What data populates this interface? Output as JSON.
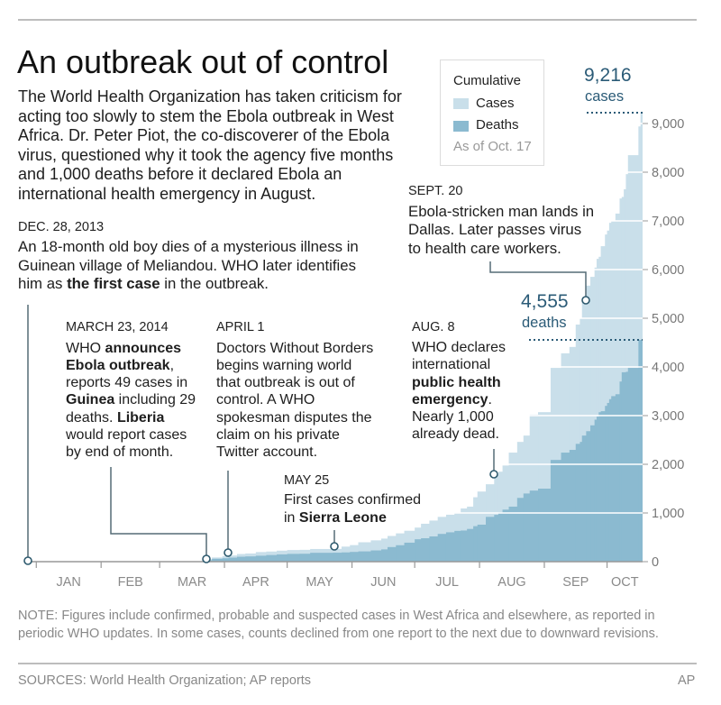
{
  "header": {
    "title": "An outbreak out of control",
    "intro_lines": [
      [
        "The World Health Organization has taken criticism for"
      ],
      [
        "acting too slowly to stem the Ebola outbreak in West"
      ],
      [
        "Africa. Dr. Peter Piot, the co-discoverer of the Ebola"
      ],
      [
        "virus, questioned why it took the agency five months"
      ],
      [
        "and 1,000 deaths before it declared Ebola an"
      ],
      [
        "international health emergency in August."
      ]
    ]
  },
  "legend": {
    "title": "Cumulative",
    "items": [
      {
        "label": "Cases",
        "color": "#c9dfea"
      },
      {
        "label": "Deaths",
        "color": "#8bbad0"
      }
    ],
    "as_of": "As of Oct. 17"
  },
  "callouts": {
    "cases": {
      "value": "9,216",
      "label": "cases"
    },
    "deaths": {
      "value": "4,555",
      "label": "deaths"
    }
  },
  "events": {
    "dec28": {
      "date": "DEC. 28, 2013",
      "lines": [
        [
          "An 18-month old boy dies of a mysterious illness in"
        ],
        [
          "Guinean village of Meliandou. WHO later identifies"
        ],
        [
          "him as ",
          {
            "b": "the first case"
          },
          " in the outbreak."
        ]
      ]
    },
    "mar23": {
      "date": "MARCH 23, 2014",
      "lines": [
        [
          "WHO ",
          {
            "b": "announces"
          }
        ],
        [
          {
            "b": "Ebola outbreak"
          },
          ","
        ],
        [
          "reports 49 cases in"
        ],
        [
          {
            "b": "Guinea"
          },
          " including 29"
        ],
        [
          "deaths. ",
          {
            "b": "Liberia"
          }
        ],
        [
          "would report cases"
        ],
        [
          "by end of month."
        ]
      ]
    },
    "apr1": {
      "date": "APRIL 1",
      "lines": [
        [
          "Doctors Without Borders"
        ],
        [
          "begins warning world"
        ],
        [
          "that outbreak is out of"
        ],
        [
          "control. A WHO"
        ],
        [
          "spokesman disputes the"
        ],
        [
          "claim on his private"
        ],
        [
          "Twitter account."
        ]
      ]
    },
    "may25": {
      "date": "MAY 25",
      "lines": [
        [
          "First cases confirmed"
        ],
        [
          "in ",
          {
            "b": "Sierra Leone"
          }
        ]
      ]
    },
    "aug8": {
      "date": "AUG. 8",
      "lines": [
        [
          "WHO declares"
        ],
        [
          "international"
        ],
        [
          {
            "b": "public health"
          }
        ],
        [
          {
            "b": "emergency"
          },
          "."
        ],
        [
          "Nearly 1,000"
        ],
        [
          "already dead."
        ]
      ]
    },
    "sep20": {
      "date": "SEPT. 20",
      "lines": [
        [
          "Ebola-stricken man lands in"
        ],
        [
          "Dallas. Later passes virus"
        ],
        [
          "to health care workers."
        ]
      ]
    }
  },
  "note": {
    "lines": [
      [
        "NOTE: Figures include confirmed, probable and suspected cases in West Africa and elsewhere, as reported in"
      ],
      [
        "periodic WHO updates. In some cases, counts declined from one report to the next due to downward revisions."
      ]
    ]
  },
  "footer": {
    "sources": "SOURCES: World Health Organization; AP reports",
    "credit": "AP"
  },
  "colors": {
    "cases": "#c9dfea",
    "deaths": "#8bbad0",
    "callout_text": "#2b5b77",
    "leader_line": "#556c77",
    "axis_text": "#777777"
  },
  "chart_data": {
    "type": "area",
    "style": "step",
    "stacking": "overlaid",
    "title": "An outbreak out of control",
    "xlabel": "",
    "ylabel": "",
    "xlim": [
      "2013-12-28",
      "2014-10-18"
    ],
    "ylim": [
      0,
      9000
    ],
    "grid": true,
    "legend": "top-center",
    "x_ticks": [
      "2014-01-01",
      "2014-02-01",
      "2014-03-01",
      "2014-04-01",
      "2014-05-01",
      "2014-06-01",
      "2014-07-01",
      "2014-08-01",
      "2014-09-01",
      "2014-10-01"
    ],
    "x_tick_labels": [
      "JAN",
      "FEB",
      "MAR",
      "APR",
      "MAY",
      "JUN",
      "JUL",
      "AUG",
      "SEP",
      "OCT"
    ],
    "y_ticks": [
      0,
      1000,
      2000,
      3000,
      4000,
      5000,
      6000,
      7000,
      8000,
      9000
    ],
    "y_tick_labels": [
      "0",
      "1,000",
      "2,000",
      "3,000",
      "4,000",
      "5,000",
      "6,000",
      "7,000",
      "8,000",
      "9,000"
    ],
    "x": [
      "2014-03-23",
      "2014-03-26",
      "2014-03-31",
      "2014-04-03",
      "2014-04-07",
      "2014-04-11",
      "2014-04-16",
      "2014-04-21",
      "2014-04-26",
      "2014-05-01",
      "2014-05-07",
      "2014-05-12",
      "2014-05-23",
      "2014-05-27",
      "2014-05-31",
      "2014-06-04",
      "2014-06-10",
      "2014-06-15",
      "2014-06-18",
      "2014-06-22",
      "2014-06-26",
      "2014-07-01",
      "2014-07-04",
      "2014-07-08",
      "2014-07-12",
      "2014-07-16",
      "2014-07-20",
      "2014-07-23",
      "2014-07-26",
      "2014-07-29",
      "2014-07-31",
      "2014-08-04",
      "2014-08-08",
      "2014-08-10",
      "2014-08-12",
      "2014-08-15",
      "2014-08-19",
      "2014-08-22",
      "2014-08-25",
      "2014-08-29",
      "2014-09-04",
      "2014-09-09",
      "2014-09-13",
      "2014-09-16",
      "2014-09-18",
      "2014-09-19",
      "2014-09-21",
      "2014-09-23",
      "2014-09-25",
      "2014-09-26",
      "2014-09-27",
      "2014-09-28",
      "2014-09-30",
      "2014-10-01",
      "2014-10-02",
      "2014-10-03",
      "2014-10-05",
      "2014-10-07",
      "2014-10-08",
      "2014-10-09",
      "2014-10-10",
      "2014-10-11",
      "2014-10-16",
      "2014-10-17"
    ],
    "series": [
      {
        "name": "Cases",
        "color": "#c9dfea",
        "values": [
          49,
          86,
          112,
          127,
          157,
          168,
          197,
          208,
          226,
          239,
          243,
          260,
          262,
          309,
          340,
          398,
          438,
          474,
          528,
          581,
          635,
          700,
          779,
          844,
          920,
          964,
          1010,
          1093,
          1130,
          1323,
          1440,
          1590,
          1779,
          1848,
          1975,
          2240,
          2460,
          2590,
          3020,
          3071,
          3980,
          4280,
          4410,
          4870,
          5000,
          5430,
          5670,
          5850,
          6040,
          6220,
          6263,
          6480,
          6720,
          6800,
          6960,
          7000,
          7150,
          7460,
          7492,
          7650,
          7960,
          8350,
          8940,
          9216
        ]
      },
      {
        "name": "Deaths",
        "color": "#8bbad0",
        "values": [
          29,
          59,
          70,
          83,
          101,
          108,
          122,
          136,
          149,
          160,
          162,
          182,
          184,
          190,
          200,
          211,
          231,
          252,
          300,
          338,
          390,
          460,
          481,
          518,
          570,
          603,
          632,
          640,
          672,
          729,
          760,
          920,
          961,
          1013,
          1069,
          1130,
          1310,
          1400,
          1460,
          1500,
          2090,
          2240,
          2296,
          2420,
          2460,
          2590,
          2680,
          2800,
          2917,
          2980,
          3070,
          3091,
          3200,
          3260,
          3338,
          3400,
          3439,
          3700,
          3890,
          3890,
          3900,
          3980,
          4555,
          4555
        ]
      }
    ],
    "annotations": [
      {
        "date": "2013-12-28",
        "label": "DEC. 28, 2013"
      },
      {
        "date": "2014-03-23",
        "label": "MARCH 23, 2014"
      },
      {
        "date": "2014-04-01",
        "label": "APRIL 1"
      },
      {
        "date": "2014-05-25",
        "label": "MAY 25"
      },
      {
        "date": "2014-08-08",
        "label": "AUG. 8"
      },
      {
        "date": "2014-09-20",
        "label": "SEPT. 20"
      },
      {
        "series": "Cases",
        "value": 9216,
        "label": "9,216 cases"
      },
      {
        "series": "Deaths",
        "value": 4555,
        "label": "4,555 deaths"
      }
    ]
  }
}
